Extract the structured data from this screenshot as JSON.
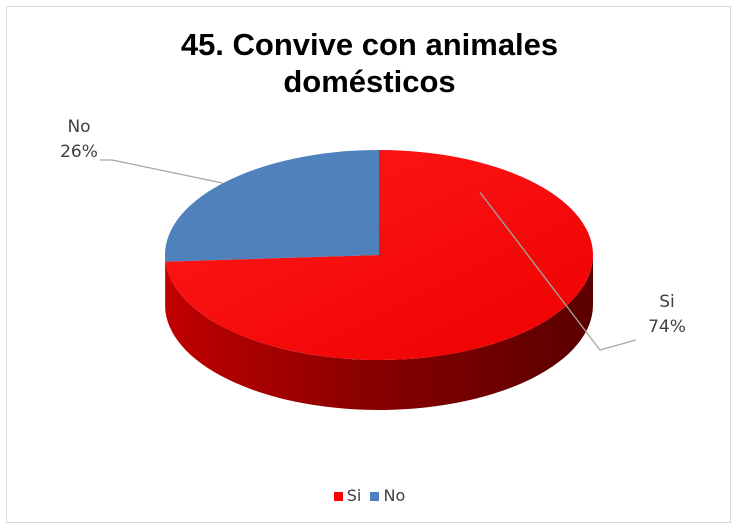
{
  "chart_data": {
    "type": "pie",
    "title": "45.  Convive con animales domésticos",
    "categories": [
      "Si",
      "No"
    ],
    "values": [
      74,
      26
    ],
    "value_labels": [
      "74%",
      "26%"
    ],
    "colors": [
      "#ff0000",
      "#4f81bd"
    ],
    "style": "3d",
    "legend_position": "bottom"
  }
}
